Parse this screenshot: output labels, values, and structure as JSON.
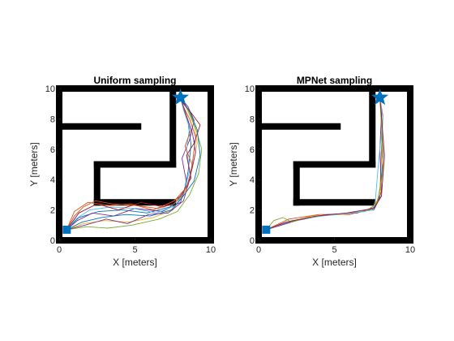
{
  "chart_data": [
    {
      "type": "line",
      "title": "Uniform sampling",
      "xlabel": "X [meters]",
      "ylabel": "Y [meters]",
      "xlim": [
        0,
        10
      ],
      "ylim": [
        0,
        10
      ],
      "xticks": [
        "0",
        "5",
        "10"
      ],
      "yticks": [
        "0",
        "2",
        "4",
        "6",
        "8",
        "10"
      ],
      "start": {
        "x": 0.5,
        "y": 0.7,
        "color": "#0072BD",
        "marker": "square"
      },
      "goal": {
        "x": 8.0,
        "y": 9.4,
        "color": "#0072BD",
        "marker": "star"
      },
      "walls": [
        {
          "x": [
            0,
            10
          ],
          "y": [
            10,
            10
          ]
        },
        {
          "x": [
            0,
            10
          ],
          "y": [
            0,
            0
          ]
        },
        {
          "x": [
            0,
            0
          ],
          "y": [
            0,
            10
          ]
        },
        {
          "x": [
            10,
            10
          ],
          "y": [
            0,
            10
          ]
        },
        {
          "x": [
            0,
            5.2
          ],
          "y": [
            7.5,
            7.5
          ]
        },
        {
          "x": [
            7.5,
            7.5
          ],
          "y": [
            5,
            10
          ]
        },
        {
          "x": [
            2.5,
            7.5
          ],
          "y": [
            5,
            5
          ]
        },
        {
          "x": [
            2.5,
            2.5
          ],
          "y": [
            2.5,
            5
          ]
        },
        {
          "x": [
            2.5,
            7.5
          ],
          "y": [
            2.5,
            2.5
          ]
        }
      ],
      "series": [
        {
          "color": "#0072BD",
          "x": [
            0.5,
            1.3,
            2.6,
            4.2,
            5.8,
            7.3,
            8.2,
            8.5,
            8.7,
            8.5,
            8.2,
            8.0
          ],
          "y": [
            0.7,
            1.5,
            1.9,
            2.0,
            1.8,
            2.2,
            3.0,
            4.5,
            6.3,
            7.8,
            8.8,
            9.4
          ]
        },
        {
          "color": "#D95319",
          "x": [
            0.5,
            1.0,
            1.6,
            2.4,
            3.5,
            5.0,
            6.5,
            7.6,
            8.5,
            8.8,
            9.0,
            8.6,
            8.2,
            8.0
          ],
          "y": [
            0.7,
            1.6,
            2.2,
            2.6,
            2.4,
            2.3,
            2.1,
            2.4,
            3.6,
            5.2,
            6.8,
            8.0,
            8.8,
            9.4
          ]
        },
        {
          "color": "#EDB120",
          "x": [
            0.5,
            1.6,
            3.0,
            4.6,
            6.2,
            7.5,
            8.3,
            8.8,
            9.1,
            8.9,
            8.4,
            8.0
          ],
          "y": [
            0.7,
            1.1,
            1.3,
            1.2,
            1.5,
            2.0,
            3.2,
            4.8,
            6.4,
            7.6,
            8.7,
            9.4
          ]
        },
        {
          "color": "#7E2F8E",
          "x": [
            0.5,
            1.2,
            2.2,
            3.6,
            5.0,
            6.8,
            8.0,
            8.4,
            8.1,
            8.6,
            8.9,
            8.5,
            8.0
          ],
          "y": [
            0.7,
            1.3,
            1.8,
            1.6,
            2.1,
            1.9,
            2.5,
            3.8,
            5.4,
            6.6,
            7.9,
            8.8,
            9.4
          ]
        },
        {
          "color": "#77AC30",
          "x": [
            0.5,
            1.8,
            3.2,
            4.8,
            6.6,
            7.8,
            8.6,
            9.2,
            9.4,
            9.0,
            8.5,
            8.0
          ],
          "y": [
            0.7,
            0.9,
            0.8,
            1.0,
            1.4,
            1.9,
            3.0,
            4.4,
            6.0,
            7.4,
            8.6,
            9.4
          ]
        },
        {
          "color": "#4DBEEE",
          "x": [
            0.5,
            1.1,
            2.0,
            3.4,
            4.9,
            6.4,
            7.7,
            8.3,
            8.6,
            8.4,
            8.6,
            8.2,
            8.0
          ],
          "y": [
            0.7,
            1.4,
            2.0,
            2.2,
            2.1,
            1.8,
            2.3,
            3.4,
            4.6,
            6.0,
            7.4,
            8.6,
            9.4
          ]
        },
        {
          "color": "#A2142F",
          "x": [
            0.5,
            1.3,
            2.5,
            3.9,
            5.4,
            6.9,
            8.0,
            8.7,
            8.4,
            8.9,
            9.3,
            8.7,
            8.2,
            8.0
          ],
          "y": [
            0.7,
            1.8,
            2.4,
            2.0,
            2.5,
            2.2,
            2.9,
            4.1,
            5.6,
            6.4,
            7.6,
            8.4,
            9.0,
            9.4
          ]
        },
        {
          "color": "#0072BD",
          "x": [
            0.5,
            1.5,
            2.8,
            4.4,
            6.0,
            7.4,
            8.1,
            8.9,
            9.3,
            9.1,
            8.6,
            8.0
          ],
          "y": [
            0.7,
            1.2,
            1.5,
            1.7,
            1.6,
            2.0,
            2.8,
            3.9,
            5.6,
            7.3,
            8.5,
            9.4
          ]
        },
        {
          "color": "#D95319",
          "x": [
            0.5,
            1.0,
            1.9,
            3.3,
            4.7,
            6.2,
            7.6,
            8.4,
            8.8,
            8.3,
            8.7,
            8.3,
            8.0
          ],
          "y": [
            0.7,
            1.9,
            2.5,
            2.3,
            2.4,
            2.0,
            2.6,
            3.5,
            4.9,
            6.2,
            7.3,
            8.4,
            9.4
          ]
        },
        {
          "color": "#7E2F8E",
          "x": [
            0.5,
            1.7,
            3.1,
            4.5,
            5.9,
            7.2,
            8.2,
            8.6,
            9.0,
            8.8,
            8.4,
            8.0
          ],
          "y": [
            0.7,
            1.0,
            1.4,
            1.1,
            1.7,
            1.8,
            2.6,
            4.0,
            5.8,
            7.0,
            8.2,
            9.4
          ]
        }
      ]
    },
    {
      "type": "line",
      "title": "MPNet sampling",
      "xlabel": "X [meters]",
      "ylabel": "Y [meters]",
      "xlim": [
        0,
        10
      ],
      "ylim": [
        0,
        10
      ],
      "xticks": [
        "0",
        "5",
        "10"
      ],
      "yticks": [
        "0",
        "2",
        "4",
        "6",
        "8",
        "10"
      ],
      "start": {
        "x": 0.5,
        "y": 0.7,
        "color": "#0072BD",
        "marker": "square"
      },
      "goal": {
        "x": 8.0,
        "y": 9.4,
        "color": "#0072BD",
        "marker": "star"
      },
      "walls": [
        {
          "x": [
            0,
            10
          ],
          "y": [
            10,
            10
          ]
        },
        {
          "x": [
            0,
            10
          ],
          "y": [
            0,
            0
          ]
        },
        {
          "x": [
            0,
            0
          ],
          "y": [
            0,
            10
          ]
        },
        {
          "x": [
            10,
            10
          ],
          "y": [
            0,
            10
          ]
        },
        {
          "x": [
            0,
            5.2
          ],
          "y": [
            7.5,
            7.5
          ]
        },
        {
          "x": [
            7.5,
            7.5
          ],
          "y": [
            5,
            10
          ]
        },
        {
          "x": [
            2.5,
            7.5
          ],
          "y": [
            5,
            5
          ]
        },
        {
          "x": [
            2.5,
            2.5
          ],
          "y": [
            2.5,
            5
          ]
        },
        {
          "x": [
            2.5,
            7.5
          ],
          "y": [
            2.5,
            2.5
          ]
        }
      ],
      "series": [
        {
          "color": "#0072BD",
          "x": [
            0.5,
            2.0,
            4.0,
            6.0,
            7.6,
            8.0,
            8.2,
            8.1,
            8.0
          ],
          "y": [
            0.7,
            1.2,
            1.6,
            1.8,
            2.0,
            2.8,
            5.5,
            8.0,
            9.4
          ]
        },
        {
          "color": "#D95319",
          "x": [
            0.5,
            2.0,
            4.0,
            6.0,
            7.6,
            8.0,
            8.1,
            8.2,
            8.0
          ],
          "y": [
            0.7,
            1.4,
            1.7,
            1.7,
            2.1,
            3.0,
            5.8,
            8.2,
            9.4
          ]
        },
        {
          "color": "#EDB120",
          "x": [
            0.5,
            1.5,
            3.5,
            5.5,
            7.5,
            8.0,
            8.3,
            8.1,
            8.0
          ],
          "y": [
            0.7,
            1.1,
            1.6,
            1.7,
            2.0,
            3.0,
            5.4,
            8.1,
            9.4
          ]
        },
        {
          "color": "#7E2F8E",
          "x": [
            0.5,
            2.5,
            4.5,
            6.5,
            7.7,
            8.1,
            8.0,
            8.1,
            8.0
          ],
          "y": [
            0.7,
            1.3,
            1.7,
            1.8,
            2.2,
            3.2,
            6.0,
            8.3,
            9.4
          ]
        },
        {
          "color": "#77AC30",
          "x": [
            0.5,
            1.0,
            1.6,
            2.2,
            3.2,
            5.0,
            7.0,
            7.8,
            8.2,
            8.1,
            8.0
          ],
          "y": [
            0.7,
            1.3,
            1.5,
            1.2,
            1.5,
            1.7,
            1.9,
            2.4,
            4.5,
            7.5,
            9.4
          ]
        },
        {
          "color": "#4DBEEE",
          "x": [
            0.5,
            2.2,
            4.2,
            6.2,
            7.5,
            7.7,
            7.9,
            8.2,
            8.0
          ],
          "y": [
            0.7,
            1.3,
            1.6,
            1.8,
            2.0,
            2.6,
            5.0,
            8.0,
            9.4
          ]
        },
        {
          "color": "#A2142F",
          "x": [
            0.5,
            1.8,
            3.8,
            5.8,
            7.6,
            8.1,
            8.3,
            8.1,
            8.0
          ],
          "y": [
            0.7,
            1.2,
            1.6,
            1.8,
            2.1,
            2.9,
            5.6,
            8.2,
            9.4
          ]
        }
      ]
    }
  ]
}
